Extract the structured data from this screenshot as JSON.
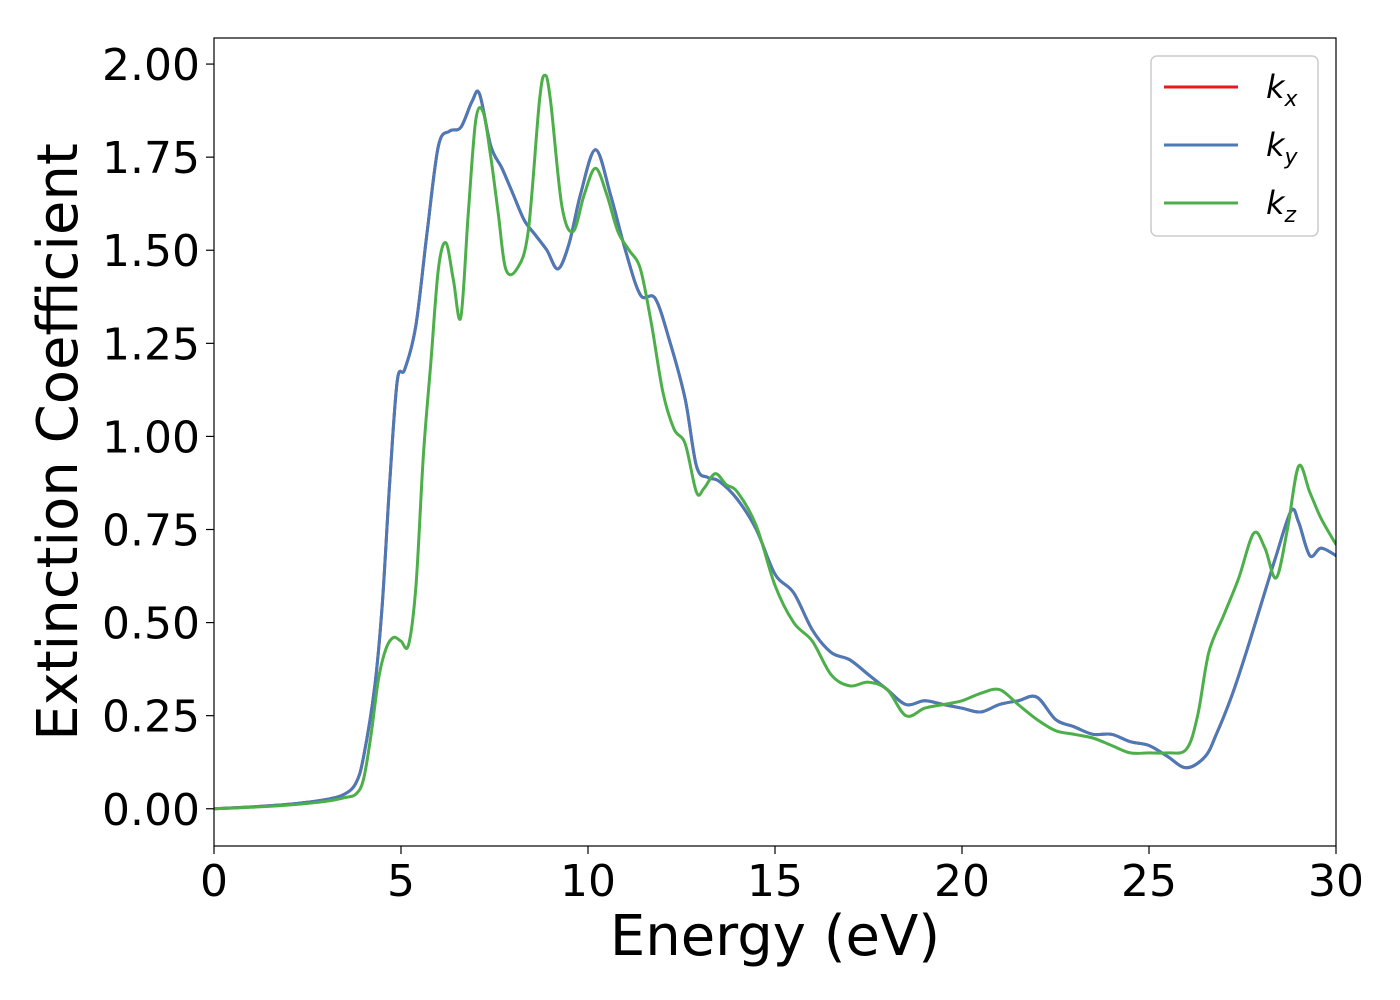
{
  "chart_data": {
    "type": "line",
    "xlabel": "Energy (eV)",
    "ylabel": "Extinction Coefficient",
    "xlim": [
      0,
      30
    ],
    "ylim": [
      -0.1,
      2.07
    ],
    "xticks": [
      0,
      5,
      10,
      15,
      20,
      25,
      30
    ],
    "xtick_labels": [
      "0",
      "5",
      "10",
      "15",
      "20",
      "25",
      "30"
    ],
    "yticks": [
      0.0,
      0.25,
      0.5,
      0.75,
      1.0,
      1.25,
      1.5,
      1.75,
      2.0
    ],
    "ytick_labels": [
      "0.00",
      "0.25",
      "0.50",
      "0.75",
      "1.00",
      "1.25",
      "1.50",
      "1.75",
      "2.00"
    ],
    "grid": false,
    "legend_position": "top-right",
    "series": [
      {
        "name": "k_x",
        "legend_base": "k",
        "legend_sub": "x",
        "color": "#e41a1c",
        "x": [
          0,
          1,
          2,
          3,
          3.5,
          3.8,
          4.0,
          4.3,
          4.5,
          4.7,
          4.9,
          5.1,
          5.4,
          5.7,
          6.0,
          6.3,
          6.6,
          6.9,
          7.1,
          7.4,
          7.7,
          8.0,
          8.3,
          8.6,
          8.9,
          9.2,
          9.5,
          9.8,
          10.2,
          10.6,
          11.0,
          11.4,
          11.8,
          12.2,
          12.6,
          12.9,
          13.2,
          13.5,
          14.0,
          14.5,
          15.0,
          15.5,
          16.0,
          16.5,
          17.0,
          17.5,
          18.0,
          18.5,
          19.0,
          19.5,
          20.0,
          20.5,
          21.0,
          21.5,
          22.0,
          22.5,
          23.0,
          23.5,
          24.0,
          24.5,
          25.0,
          25.5,
          26.0,
          26.5,
          26.8,
          27.2,
          27.6,
          28.0,
          28.4,
          28.8,
          29.0,
          29.3,
          29.6,
          30.0
        ],
        "y": [
          0.0,
          0.005,
          0.012,
          0.025,
          0.04,
          0.07,
          0.14,
          0.33,
          0.55,
          0.88,
          1.15,
          1.18,
          1.3,
          1.55,
          1.78,
          1.82,
          1.83,
          1.9,
          1.92,
          1.78,
          1.72,
          1.65,
          1.58,
          1.54,
          1.5,
          1.45,
          1.52,
          1.65,
          1.77,
          1.65,
          1.5,
          1.38,
          1.37,
          1.25,
          1.1,
          0.92,
          0.89,
          0.88,
          0.83,
          0.75,
          0.63,
          0.58,
          0.48,
          0.42,
          0.4,
          0.36,
          0.32,
          0.28,
          0.29,
          0.28,
          0.27,
          0.26,
          0.28,
          0.29,
          0.3,
          0.24,
          0.22,
          0.2,
          0.2,
          0.18,
          0.17,
          0.14,
          0.11,
          0.14,
          0.2,
          0.3,
          0.42,
          0.55,
          0.68,
          0.8,
          0.77,
          0.68,
          0.7,
          0.68
        ]
      },
      {
        "name": "k_y",
        "legend_base": "k",
        "legend_sub": "y",
        "color": "#4a7ab8",
        "x": [
          0,
          1,
          2,
          3,
          3.5,
          3.8,
          4.0,
          4.3,
          4.5,
          4.7,
          4.9,
          5.1,
          5.4,
          5.7,
          6.0,
          6.3,
          6.6,
          6.9,
          7.1,
          7.4,
          7.7,
          8.0,
          8.3,
          8.6,
          8.9,
          9.2,
          9.5,
          9.8,
          10.2,
          10.6,
          11.0,
          11.4,
          11.8,
          12.2,
          12.6,
          12.9,
          13.2,
          13.5,
          14.0,
          14.5,
          15.0,
          15.5,
          16.0,
          16.5,
          17.0,
          17.5,
          18.0,
          18.5,
          19.0,
          19.5,
          20.0,
          20.5,
          21.0,
          21.5,
          22.0,
          22.5,
          23.0,
          23.5,
          24.0,
          24.5,
          25.0,
          25.5,
          26.0,
          26.5,
          26.8,
          27.2,
          27.6,
          28.0,
          28.4,
          28.8,
          29.0,
          29.3,
          29.6,
          30.0
        ],
        "y": [
          0.0,
          0.005,
          0.012,
          0.025,
          0.04,
          0.07,
          0.14,
          0.33,
          0.55,
          0.88,
          1.15,
          1.18,
          1.3,
          1.55,
          1.78,
          1.82,
          1.83,
          1.9,
          1.92,
          1.78,
          1.72,
          1.65,
          1.58,
          1.54,
          1.5,
          1.45,
          1.52,
          1.65,
          1.77,
          1.65,
          1.5,
          1.38,
          1.37,
          1.25,
          1.1,
          0.92,
          0.89,
          0.88,
          0.83,
          0.75,
          0.63,
          0.58,
          0.48,
          0.42,
          0.4,
          0.36,
          0.32,
          0.28,
          0.29,
          0.28,
          0.27,
          0.26,
          0.28,
          0.29,
          0.3,
          0.24,
          0.22,
          0.2,
          0.2,
          0.18,
          0.17,
          0.14,
          0.11,
          0.14,
          0.2,
          0.3,
          0.42,
          0.55,
          0.68,
          0.8,
          0.77,
          0.68,
          0.7,
          0.68
        ]
      },
      {
        "name": "k_z",
        "legend_base": "k",
        "legend_sub": "z",
        "color": "#4daf4a",
        "x": [
          0,
          1,
          2,
          3,
          3.5,
          3.8,
          4.0,
          4.2,
          4.4,
          4.6,
          4.8,
          5.0,
          5.2,
          5.4,
          5.6,
          5.8,
          6.0,
          6.2,
          6.4,
          6.6,
          6.8,
          7.0,
          7.2,
          7.4,
          7.6,
          7.8,
          8.1,
          8.4,
          8.7,
          8.85,
          9.0,
          9.3,
          9.6,
          9.9,
          10.2,
          10.5,
          10.8,
          11.1,
          11.4,
          11.7,
          12.0,
          12.3,
          12.6,
          12.9,
          13.1,
          13.4,
          13.7,
          14.0,
          14.5,
          15.0,
          15.5,
          16.0,
          16.5,
          17.0,
          17.5,
          18.0,
          18.5,
          19.0,
          19.5,
          20.0,
          20.5,
          21.0,
          21.5,
          22.0,
          22.5,
          23.0,
          23.5,
          24.0,
          24.5,
          25.0,
          25.5,
          26.0,
          26.3,
          26.6,
          27.0,
          27.4,
          27.8,
          28.1,
          28.4,
          28.7,
          29.0,
          29.3,
          29.6,
          30.0
        ],
        "y": [
          0.0,
          0.004,
          0.01,
          0.02,
          0.03,
          0.04,
          0.08,
          0.2,
          0.35,
          0.43,
          0.46,
          0.45,
          0.44,
          0.6,
          0.95,
          1.2,
          1.45,
          1.52,
          1.42,
          1.32,
          1.6,
          1.85,
          1.87,
          1.75,
          1.6,
          1.45,
          1.45,
          1.55,
          1.9,
          1.97,
          1.9,
          1.62,
          1.55,
          1.65,
          1.72,
          1.65,
          1.55,
          1.5,
          1.45,
          1.3,
          1.12,
          1.02,
          0.98,
          0.85,
          0.86,
          0.9,
          0.87,
          0.85,
          0.76,
          0.6,
          0.5,
          0.45,
          0.36,
          0.33,
          0.34,
          0.32,
          0.25,
          0.27,
          0.28,
          0.29,
          0.31,
          0.32,
          0.28,
          0.24,
          0.21,
          0.2,
          0.19,
          0.17,
          0.15,
          0.15,
          0.15,
          0.16,
          0.25,
          0.42,
          0.52,
          0.62,
          0.74,
          0.7,
          0.62,
          0.75,
          0.92,
          0.85,
          0.78,
          0.71
        ]
      }
    ]
  }
}
